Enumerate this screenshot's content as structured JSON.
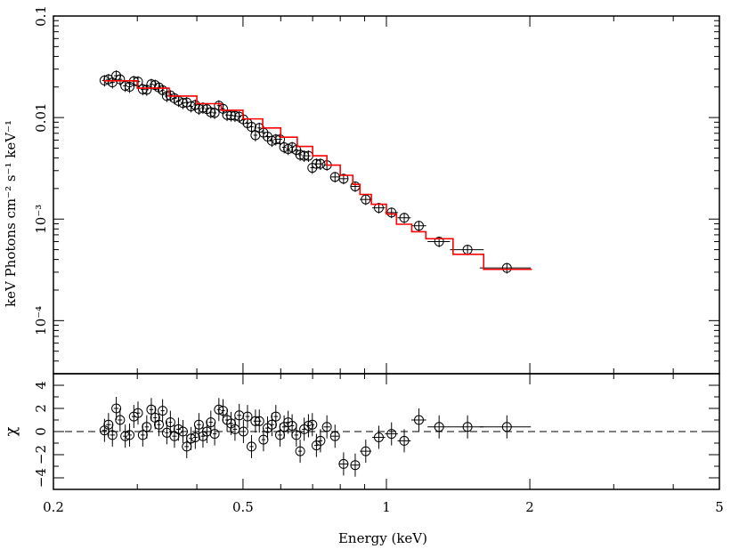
{
  "chart_data": {
    "type": "scatter",
    "x_axis": {
      "label": "Energy (keV)",
      "scale": "log",
      "range": [
        0.2,
        5
      ],
      "ticks": [
        {
          "value": 0.2,
          "label": "0.2"
        },
        {
          "value": 0.5,
          "label": "0.5"
        },
        {
          "value": 1,
          "label": "1"
        },
        {
          "value": 2,
          "label": "2"
        },
        {
          "value": 5,
          "label": "5"
        }
      ]
    },
    "top_panel": {
      "ylabel": "keV Photons cm⁻² s⁻¹ keV⁻¹",
      "yscale": "log",
      "ylim": [
        3e-05,
        0.1
      ],
      "yticks": [
        {
          "value": 0.1,
          "label": "0.1"
        },
        {
          "value": 0.01,
          "label": "0.01"
        },
        {
          "value": 0.001,
          "label": "10⁻³"
        },
        {
          "value": 0.0001,
          "label": "10⁻⁴"
        }
      ],
      "data": {
        "x": [
          0.256,
          0.261,
          0.266,
          0.271,
          0.276,
          0.283,
          0.289,
          0.295,
          0.301,
          0.308,
          0.314,
          0.321,
          0.327,
          0.333,
          0.339,
          0.346,
          0.352,
          0.359,
          0.366,
          0.374,
          0.381,
          0.389,
          0.397,
          0.404,
          0.412,
          0.42,
          0.428,
          0.436,
          0.445,
          0.454,
          0.463,
          0.472,
          0.481,
          0.491,
          0.501,
          0.511,
          0.521,
          0.531,
          0.541,
          0.552,
          0.563,
          0.575,
          0.586,
          0.598,
          0.61,
          0.622,
          0.634,
          0.647,
          0.659,
          0.672,
          0.686,
          0.699,
          0.713,
          0.727,
          0.75,
          0.78,
          0.813,
          0.86,
          0.905,
          0.964,
          1.025,
          1.09,
          1.17,
          1.29,
          1.48,
          1.79
        ],
        "y": [
          0.0232,
          0.0238,
          0.0222,
          0.0258,
          0.0238,
          0.0205,
          0.0201,
          0.0228,
          0.0226,
          0.019,
          0.0188,
          0.0213,
          0.0209,
          0.0198,
          0.0186,
          0.0163,
          0.0165,
          0.0155,
          0.0146,
          0.0139,
          0.0141,
          0.0129,
          0.0133,
          0.0122,
          0.0125,
          0.0121,
          0.0113,
          0.0111,
          0.0131,
          0.0122,
          0.0106,
          0.0105,
          0.0104,
          0.0102,
          0.0096,
          0.0088,
          0.0081,
          0.0067,
          0.0079,
          0.0071,
          0.0065,
          0.0059,
          0.0061,
          0.0061,
          0.0051,
          0.0049,
          0.0051,
          0.0048,
          0.0043,
          0.0042,
          0.0042,
          0.0032,
          0.0035,
          0.0035,
          0.0034,
          0.0026,
          0.0025,
          0.0021,
          0.00156,
          0.00129,
          0.00116,
          0.00103,
          0.00086,
          0.0006,
          0.0005,
          0.00033
        ],
        "x_err": [
          0.003,
          0.003,
          0.003,
          0.003,
          0.003,
          0.003,
          0.003,
          0.003,
          0.003,
          0.003,
          0.003,
          0.003,
          0.003,
          0.003,
          0.003,
          0.003,
          0.003,
          0.004,
          0.004,
          0.004,
          0.004,
          0.004,
          0.004,
          0.004,
          0.004,
          0.004,
          0.004,
          0.004,
          0.004,
          0.004,
          0.004,
          0.005,
          0.005,
          0.005,
          0.005,
          0.005,
          0.005,
          0.005,
          0.005,
          0.005,
          0.006,
          0.006,
          0.006,
          0.006,
          0.006,
          0.006,
          0.006,
          0.006,
          0.006,
          0.007,
          0.007,
          0.007,
          0.007,
          0.007,
          0.012,
          0.015,
          0.017,
          0.02,
          0.025,
          0.03,
          0.032,
          0.035,
          0.042,
          0.07,
          0.12,
          0.22
        ],
        "y_err_frac": [
          0.13,
          0.13,
          0.13,
          0.13,
          0.13,
          0.13,
          0.13,
          0.13,
          0.13,
          0.13,
          0.13,
          0.13,
          0.13,
          0.13,
          0.13,
          0.13,
          0.13,
          0.13,
          0.13,
          0.13,
          0.13,
          0.13,
          0.13,
          0.13,
          0.13,
          0.13,
          0.13,
          0.13,
          0.13,
          0.13,
          0.13,
          0.13,
          0.13,
          0.13,
          0.13,
          0.13,
          0.13,
          0.13,
          0.13,
          0.13,
          0.13,
          0.13,
          0.13,
          0.13,
          0.13,
          0.13,
          0.13,
          0.13,
          0.13,
          0.13,
          0.13,
          0.13,
          0.13,
          0.13,
          0.12,
          0.12,
          0.12,
          0.12,
          0.12,
          0.12,
          0.12,
          0.12,
          0.12,
          0.12,
          0.12,
          0.12
        ]
      },
      "model": {
        "color": "#ff0000",
        "x": [
          0.255,
          0.3,
          0.35,
          0.4,
          0.45,
          0.5,
          0.55,
          0.6,
          0.65,
          0.7,
          0.75,
          0.8,
          0.85,
          0.88,
          0.93,
          1.0,
          1.05,
          1.13,
          1.21,
          1.38,
          1.6,
          2.02
        ],
        "y": [
          0.023,
          0.0195,
          0.0163,
          0.0137,
          0.0118,
          0.0097,
          0.0079,
          0.0064,
          0.0052,
          0.0042,
          0.0034,
          0.0027,
          0.0022,
          0.00175,
          0.0014,
          0.00112,
          0.00089,
          0.00075,
          0.00064,
          0.00045,
          0.00032,
          0.00032
        ]
      }
    },
    "bottom_panel": {
      "ylabel": "χ",
      "ylim": [
        -5,
        5
      ],
      "yticks": [
        {
          "value": 4,
          "label": "4"
        },
        {
          "value": 2,
          "label": "2"
        },
        {
          "value": 0,
          "label": "0"
        },
        {
          "value": -2,
          "label": "−2"
        },
        {
          "value": -4,
          "label": "−4"
        }
      ],
      "zero_line": true,
      "data": {
        "x": [
          0.256,
          0.261,
          0.266,
          0.271,
          0.276,
          0.283,
          0.289,
          0.295,
          0.301,
          0.308,
          0.314,
          0.321,
          0.327,
          0.333,
          0.339,
          0.346,
          0.352,
          0.359,
          0.366,
          0.374,
          0.381,
          0.389,
          0.397,
          0.404,
          0.412,
          0.42,
          0.428,
          0.436,
          0.445,
          0.454,
          0.463,
          0.472,
          0.481,
          0.491,
          0.501,
          0.511,
          0.521,
          0.531,
          0.541,
          0.552,
          0.563,
          0.575,
          0.586,
          0.598,
          0.61,
          0.622,
          0.634,
          0.647,
          0.659,
          0.672,
          0.686,
          0.699,
          0.713,
          0.727,
          0.75,
          0.78,
          0.813,
          0.86,
          0.905,
          0.964,
          1.025,
          1.09,
          1.17,
          1.29,
          1.48,
          1.79
        ],
        "y": [
          0.1,
          0.6,
          -0.3,
          2.0,
          1.0,
          -0.4,
          -0.3,
          1.3,
          1.6,
          -0.3,
          0.4,
          1.9,
          1.2,
          0.6,
          1.8,
          -0.1,
          0.8,
          -0.4,
          0.2,
          0.0,
          -1.3,
          -0.6,
          -0.5,
          0.6,
          -0.4,
          0.0,
          0.8,
          -0.2,
          1.9,
          1.8,
          1.0,
          0.7,
          0.2,
          1.4,
          0.0,
          1.3,
          -1.3,
          0.9,
          0.9,
          -0.7,
          0.3,
          0.6,
          1.3,
          -0.3,
          0.4,
          0.8,
          0.5,
          -0.3,
          -1.7,
          0.2,
          0.5,
          0.6,
          -1.2,
          -0.8,
          0.4,
          -0.4,
          -2.8,
          -2.9,
          -1.7,
          -0.5,
          -0.2,
          -0.8,
          1.0,
          0.4,
          0.4,
          0.4
        ],
        "y_err": 1.0
      }
    }
  }
}
